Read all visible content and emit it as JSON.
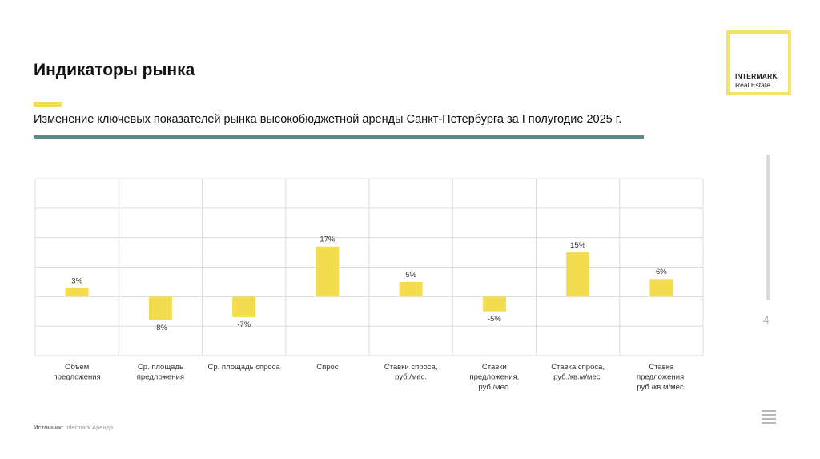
{
  "header": {
    "title": "Индикаторы рынка",
    "subtitle": "Изменение ключевых показателей рынка высокобюджетной аренды Санкт-Петербурга за I полугодие 2025 г."
  },
  "logo": {
    "line1": "INTERMARK",
    "line2": "Real Estate",
    "frame_color": "#f3e465"
  },
  "page_number": "4",
  "footer": {
    "source_label": "Источник:",
    "source_value": "Intermark Аренда"
  },
  "icons": {
    "menu": "hamburger-menu-icon"
  },
  "colors": {
    "bar": "#f3dd4e",
    "accent": "#f3dd55",
    "rule": "#5b8a8a",
    "grid": "#dcdcdc"
  },
  "chart_data": {
    "type": "bar",
    "title": "",
    "xlabel": "",
    "ylabel": "",
    "ylim": [
      -20,
      40
    ],
    "grid": true,
    "categories": [
      "Объем\nпредложения",
      "Ср. площадь\nпредложения",
      "Ср. площадь спроса",
      "Спрос",
      "Ставки спроса,\nруб./мес.",
      "Ставки\nпредложения,\nруб./мес.",
      "Ставка спроса,\nруб./кв.м/мес.",
      "Ставка\nпредложения,\nруб./кв.м/мес."
    ],
    "values": [
      3,
      -8,
      -7,
      17,
      5,
      -5,
      15,
      6
    ],
    "labels": [
      "3%",
      "-8%",
      "-7%",
      "17%",
      "5%",
      "-5%",
      "15%",
      "6%"
    ]
  }
}
